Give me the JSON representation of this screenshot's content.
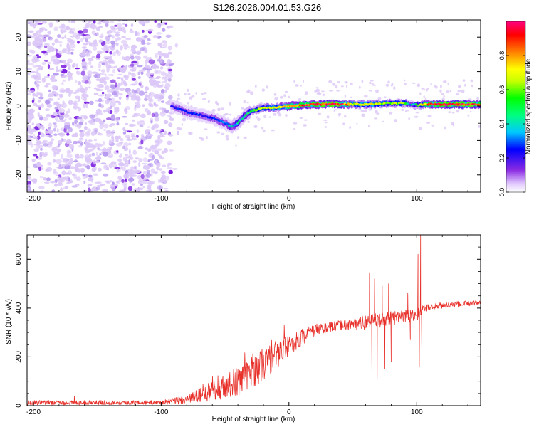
{
  "title": "S126.2026.004.01.53.G26",
  "chart_data": [
    {
      "type": "heatmap",
      "name": "spectrogram",
      "xlabel": "Height of straight line (km)",
      "ylabel": "Frequency (Hz)",
      "xlim": [
        -205,
        150
      ],
      "ylim": [
        -25,
        25
      ],
      "xticks": [
        -200,
        -100,
        0,
        100
      ],
      "xtick_labels": [
        "-200",
        "-100",
        "0",
        "100"
      ],
      "yticks": [
        -20,
        -10,
        0,
        10,
        20
      ],
      "ytick_labels": [
        "-20",
        "-10",
        "0",
        "10",
        "20"
      ],
      "colorbar": {
        "label": "Normalized spectral amplitude",
        "range": [
          0,
          1
        ],
        "ticks": [
          0.0,
          0.2,
          0.4,
          0.6,
          0.8
        ],
        "tick_labels": [
          "0.0",
          "0.2",
          "0.4",
          "0.6",
          "0.8"
        ],
        "colormap": [
          "#ffffff",
          "#e0c8ff",
          "#8a2be2",
          "#0000ff",
          "#00c8ff",
          "#00ff00",
          "#c8ff00",
          "#ffff00",
          "#ff8000",
          "#ff0000",
          "#ff0080"
        ]
      },
      "noise_region": {
        "x_range": [
          -205,
          -92
        ],
        "amplitude": 0.1
      },
      "ridge": {
        "x": [
          -92,
          -85,
          -78,
          -70,
          -60,
          -50,
          -45,
          -40,
          -35,
          -30,
          -25,
          -20,
          -10,
          0,
          10,
          20,
          40,
          50,
          60,
          70,
          80,
          90,
          95,
          100,
          110,
          120,
          130,
          140,
          150
        ],
        "freq": [
          0,
          -1,
          -2,
          -2.5,
          -3.5,
          -5,
          -6,
          -5,
          -3,
          -1.5,
          -1,
          -0.5,
          -0.5,
          0,
          0.3,
          0.5,
          0.5,
          0.5,
          0.5,
          0.6,
          0.8,
          0.8,
          0.5,
          0.3,
          0.5,
          0.5,
          0.5,
          0.5,
          0.5
        ],
        "amplitude": [
          0.25,
          0.3,
          0.3,
          0.3,
          0.3,
          0.35,
          0.4,
          0.4,
          0.45,
          0.5,
          0.55,
          0.6,
          0.65,
          0.8,
          0.85,
          0.9,
          0.95,
          0.6,
          0.7,
          0.6,
          0.55,
          0.55,
          0.4,
          0.5,
          0.9,
          0.95,
          0.95,
          0.9,
          0.9
        ]
      }
    },
    {
      "type": "line",
      "name": "snr",
      "color": "#e8302a",
      "xlabel": "Height of straight line (km)",
      "ylabel": "SNR (10 * v/v)",
      "xlim": [
        -205,
        150
      ],
      "ylim": [
        0,
        700
      ],
      "xticks": [
        -200,
        -100,
        0,
        100
      ],
      "xtick_labels": [
        "-200",
        "-100",
        "0",
        "100"
      ],
      "yticks": [
        0,
        200,
        400,
        600
      ],
      "ytick_labels": [
        "0",
        "200",
        "400",
        "600"
      ],
      "trend": {
        "x": [
          -205,
          -100,
          -80,
          -60,
          -40,
          -20,
          0,
          20,
          40,
          60,
          80,
          100,
          105,
          120,
          140,
          150
        ],
        "y": [
          12,
          13,
          25,
          60,
          100,
          170,
          250,
          310,
          330,
          340,
          360,
          370,
          400,
          410,
          420,
          420
        ]
      },
      "noise_amplitude": {
        "x": [
          -205,
          -100,
          -80,
          -60,
          -40,
          -20,
          0,
          20,
          40,
          60,
          100,
          105,
          150
        ],
        "y": [
          10,
          8,
          20,
          40,
          60,
          70,
          45,
          25,
          20,
          30,
          30,
          15,
          10
        ]
      },
      "spikes": [
        {
          "x": -168,
          "y": 38
        },
        {
          "x": 63,
          "y": 545
        },
        {
          "x": 65,
          "y": 95
        },
        {
          "x": 67,
          "y": 520
        },
        {
          "x": 69,
          "y": 110
        },
        {
          "x": 73,
          "y": 490
        },
        {
          "x": 75,
          "y": 150
        },
        {
          "x": 78,
          "y": 500
        },
        {
          "x": 80,
          "y": 180
        },
        {
          "x": 93,
          "y": 460
        },
        {
          "x": 95,
          "y": 270
        },
        {
          "x": 101,
          "y": 620
        },
        {
          "x": 102,
          "y": 160
        },
        {
          "x": 103,
          "y": 700
        },
        {
          "x": 104,
          "y": 200
        }
      ]
    }
  ]
}
